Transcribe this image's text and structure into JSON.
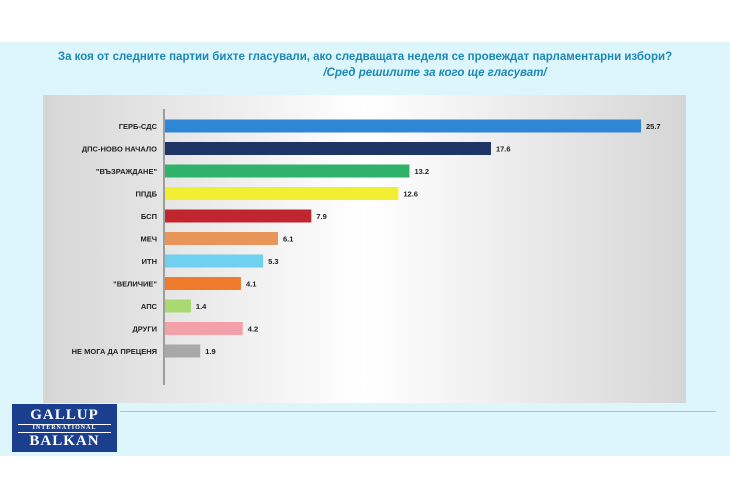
{
  "title": "За коя от следните партии бихте  гласували,  ако следващата неделя се провеждат парламентарни избори?",
  "subtitle": "/Сред решилите за кого ще гласуват/",
  "logo": {
    "top": "GALLUP",
    "middle": "INTERNATIONAL",
    "bottom": "BALKAN"
  },
  "chart_data": {
    "type": "bar",
    "orientation": "horizontal",
    "categories": [
      "ГЕРБ-СДС",
      "ДПС-НОВО НАЧАЛО",
      "\"ВЪЗРАЖДАНЕ\"",
      "ППДБ",
      "БСП",
      "МЕЧ",
      "ИТН",
      "\"ВЕЛИЧИЕ\"",
      "АПС",
      "ДРУГИ",
      "НЕ МОГА ДА ПРЕЦЕНЯ"
    ],
    "values": [
      25.7,
      17.6,
      13.2,
      12.6,
      7.9,
      6.1,
      5.3,
      4.1,
      1.4,
      4.2,
      1.9
    ],
    "value_labels": [
      "25.7",
      "17.6",
      "13.2",
      "12.6",
      "7.9",
      "6.1",
      "5.3",
      "4.1",
      "1.4",
      "4.2",
      "1.9"
    ],
    "colors": [
      "#2e86d6",
      "#1f3566",
      "#2fb36a",
      "#f2ee34",
      "#c0262e",
      "#e8955a",
      "#6fd0f0",
      "#f07b2c",
      "#a9d970",
      "#f4a0a8",
      "#a8a8a8"
    ],
    "xlim": [
      0,
      25.7
    ],
    "grid": false,
    "legend": "none"
  }
}
